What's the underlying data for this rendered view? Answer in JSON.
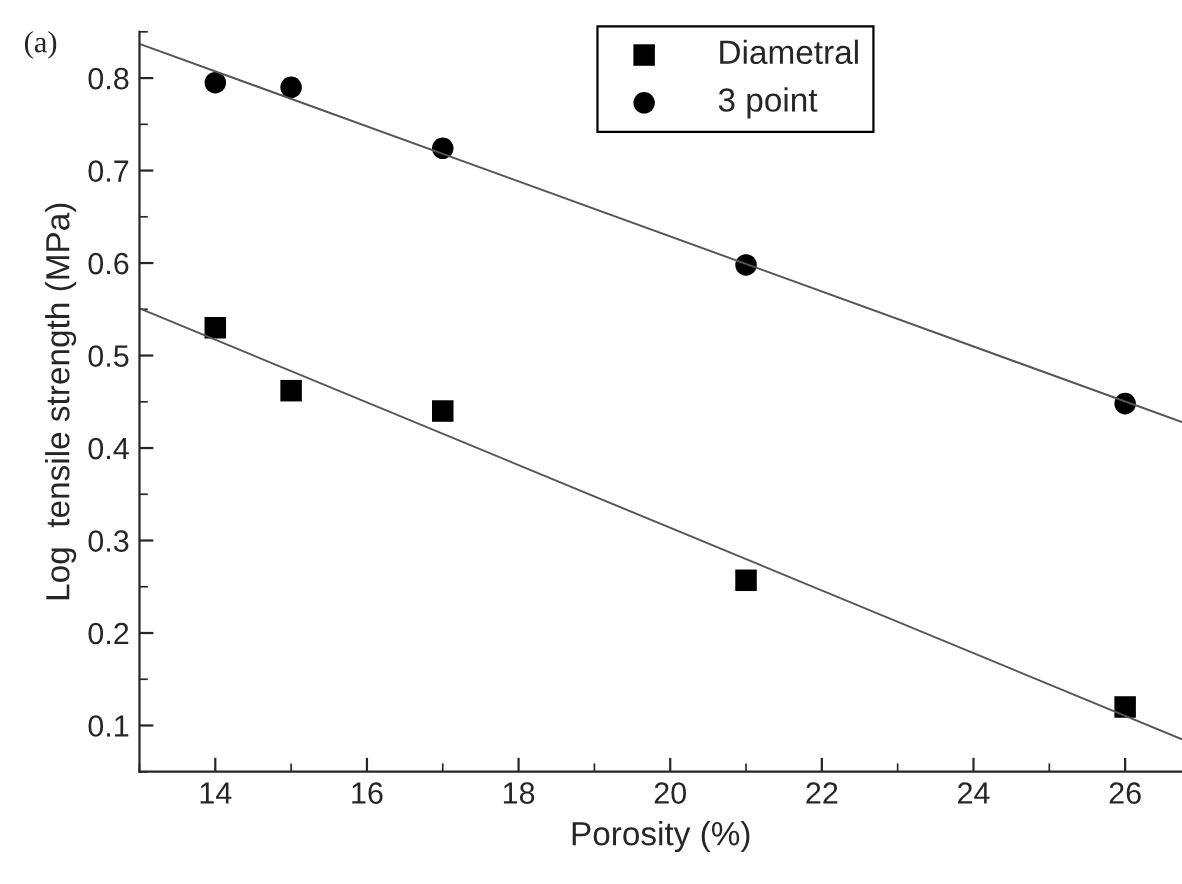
{
  "chart_data": {
    "type": "scatter",
    "xlabel": "Porosity (%)",
    "ylabel": "Log  tensile strength (MPa)",
    "annotations": [
      "(a)"
    ],
    "series": [
      {
        "name": "Diametral",
        "color": "#000000",
        "marker": "square",
        "x": [
          14,
          15,
          17,
          21,
          26
        ],
        "values": [
          0.53,
          0.462,
          0.44,
          0.257,
          0.12
        ]
      },
      {
        "name": "3 point",
        "color": "#000000",
        "marker": "circle",
        "x": [
          14,
          15,
          17,
          21,
          26
        ],
        "values": [
          0.795,
          0.79,
          0.724,
          0.598,
          0.448
        ]
      },
      {
        "type": "line",
        "color": "#555555",
        "x": [
          13,
          26.75
        ],
        "values": [
          0.837,
          0.428
        ]
      },
      {
        "type": "line",
        "color": "#555555",
        "x": [
          13,
          26.75
        ],
        "values": [
          0.551,
          0.085
        ]
      }
    ],
    "xlim": [
      13,
      26.75
    ],
    "xticks": [
      14,
      16,
      18,
      20,
      22,
      24,
      26
    ],
    "ylim": [
      0.05,
      0.85
    ],
    "yticks": [
      0.1,
      0.2,
      0.3,
      0.4,
      0.5,
      0.6,
      0.7,
      0.8
    ],
    "grid": false,
    "legend": "top right"
  }
}
